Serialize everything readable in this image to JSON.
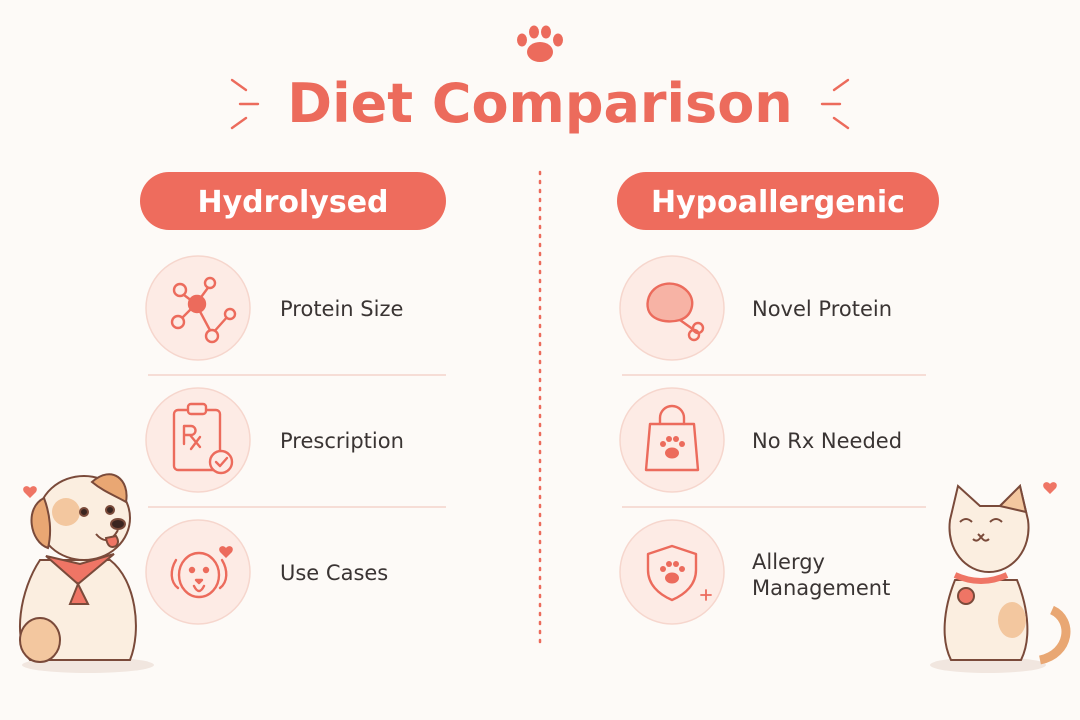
{
  "title": "Diet Comparison",
  "columns": [
    {
      "heading": "Hydrolysed",
      "items": [
        {
          "label": "Protein Size"
        },
        {
          "label": "Prescription"
        },
        {
          "label": "Use Cases"
        }
      ]
    },
    {
      "heading": "Hypoallergenic",
      "items": [
        {
          "label": "Novel Protein"
        },
        {
          "label": "No Rx Needed"
        },
        {
          "label": "Allergy Management"
        }
      ]
    }
  ]
}
